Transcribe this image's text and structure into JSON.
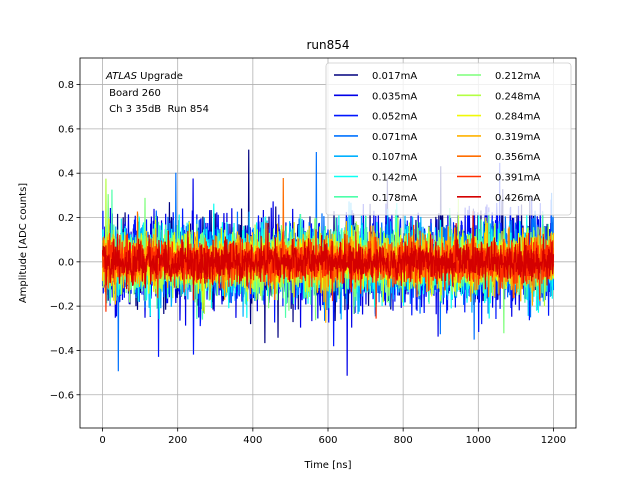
{
  "chart_data": {
    "type": "line",
    "title": "run854",
    "xlabel": "Time [ns]",
    "ylabel": "Amplitude [ADC counts]",
    "xlim": [
      -60,
      1260
    ],
    "ylim": [
      -0.75,
      0.92
    ],
    "xticks": [
      0,
      200,
      400,
      600,
      800,
      1000,
      1200
    ],
    "yticks": [
      -0.6,
      -0.4,
      -0.2,
      0.0,
      0.2,
      0.4,
      0.6,
      0.8
    ],
    "xtick_labels": [
      "0",
      "200",
      "400",
      "600",
      "800",
      "1000",
      "1200"
    ],
    "ytick_labels": [
      "−0.6",
      "−0.4",
      "−0.2",
      "0.0",
      "0.2",
      "0.4",
      "0.6",
      "0.8"
    ],
    "grid": true,
    "legend_position": "upper-right",
    "legend_columns": 2,
    "annotation": {
      "line1_italic": "ATLAS",
      "line1_rest": " Upgrade",
      "line2": " Board 260",
      "line3": " Ch 3 35dB  Run 854"
    },
    "series": [
      {
        "name": "0.017mA",
        "color": "#00007f",
        "amplitude": 0.17,
        "seed": 11
      },
      {
        "name": "0.035mA",
        "color": "#0000e8",
        "amplitude": 0.18,
        "seed": 23
      },
      {
        "name": "0.052mA",
        "color": "#0016ff",
        "amplitude": 0.17,
        "seed": 37
      },
      {
        "name": "0.071mA",
        "color": "#0072ff",
        "amplitude": 0.16,
        "seed": 41
      },
      {
        "name": "0.107mA",
        "color": "#00b0ff",
        "amplitude": 0.15,
        "seed": 53
      },
      {
        "name": "0.142mA",
        "color": "#0dfff2",
        "amplitude": 0.14,
        "seed": 67
      },
      {
        "name": "0.178mA",
        "color": "#4dffaa",
        "amplitude": 0.13,
        "seed": 71
      },
      {
        "name": "0.212mA",
        "color": "#7dff7a",
        "amplitude": 0.12,
        "seed": 83
      },
      {
        "name": "0.248mA",
        "color": "#b4ff43",
        "amplitude": 0.11,
        "seed": 97
      },
      {
        "name": "0.284mA",
        "color": "#f0f907",
        "amplitude": 0.1,
        "seed": 101
      },
      {
        "name": "0.319mA",
        "color": "#ffb200",
        "amplitude": 0.1,
        "seed": 113
      },
      {
        "name": "0.356mA",
        "color": "#ff6e00",
        "amplitude": 0.09,
        "seed": 127
      },
      {
        "name": "0.391mA",
        "color": "#ff3000",
        "amplitude": 0.09,
        "seed": 131
      },
      {
        "name": "0.426mA",
        "color": "#d40000",
        "amplitude": 0.08,
        "seed": 139
      }
    ]
  }
}
